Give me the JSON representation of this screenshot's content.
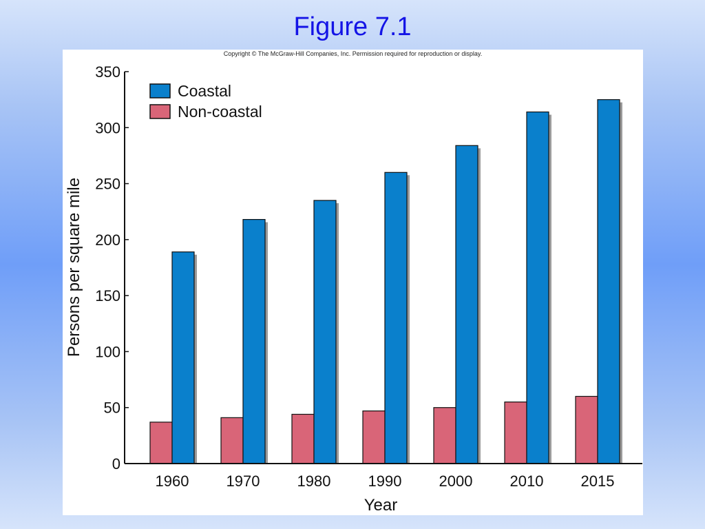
{
  "slide": {
    "title": "Figure 7.1",
    "copyright": "Copyright © The McGraw-Hill Companies, Inc. Permission required for reproduction or display."
  },
  "colors": {
    "coastal": "#0a80cc",
    "non_coastal": "#d96578",
    "shadow": "#9a9a9a"
  },
  "chart_data": {
    "type": "bar",
    "title": "",
    "xlabel": "Year",
    "ylabel": "Persons per square mile",
    "ylim": [
      0,
      350
    ],
    "yticks": [
      0,
      50,
      100,
      150,
      200,
      250,
      300,
      350
    ],
    "categories": [
      "1960",
      "1970",
      "1980",
      "1990",
      "2000",
      "2010",
      "2015"
    ],
    "series": [
      {
        "name": "Non-coastal",
        "values": [
          37,
          41,
          44,
          47,
          50,
          55,
          60
        ]
      },
      {
        "name": "Coastal",
        "values": [
          189,
          218,
          235,
          260,
          284,
          314,
          325
        ]
      }
    ],
    "legend_position": "top-left",
    "grid": false
  }
}
